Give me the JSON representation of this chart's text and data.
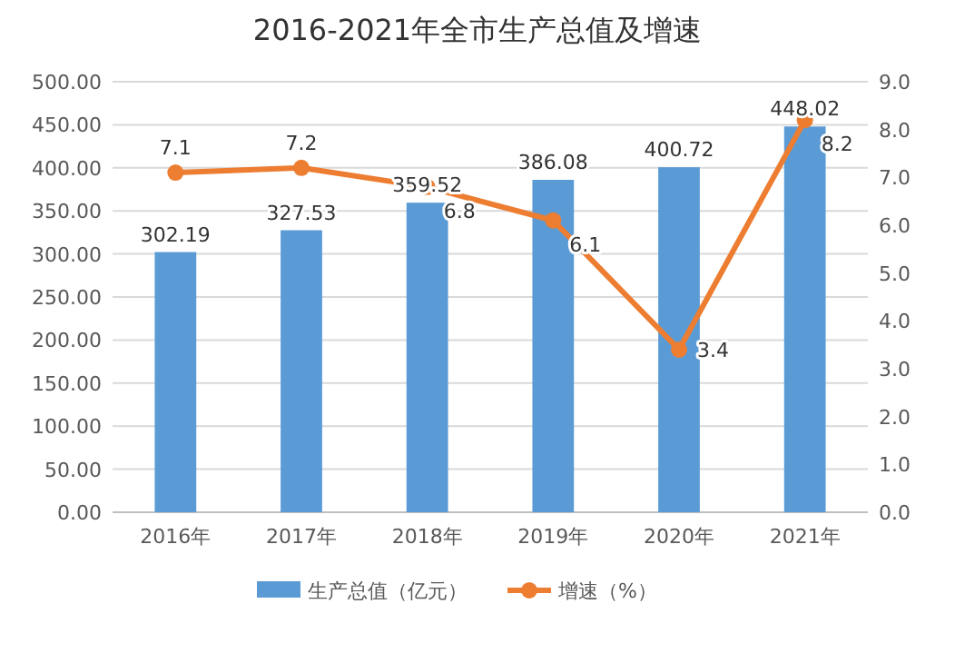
{
  "chart_data": {
    "type": "bar",
    "title": "2016-2021年全市生产总值及增速",
    "categories": [
      "2016年",
      "2017年",
      "2018年",
      "2019年",
      "2020年",
      "2021年"
    ],
    "series": [
      {
        "name": "生产总值（亿元）",
        "color": "#5b9bd5",
        "values": [
          302.19,
          327.53,
          359.52,
          386.08,
          400.72,
          448.02
        ]
      },
      {
        "name": "增速（%）",
        "type": "line",
        "axis": "y2",
        "color": "#ed7d31",
        "marker": "circle",
        "values": [
          7.1,
          7.2,
          6.8,
          6.1,
          3.4,
          8.2
        ]
      }
    ],
    "ylim": [
      0,
      500
    ],
    "yticks": [
      {
        "value": 0,
        "label": "0.00"
      },
      {
        "value": 50,
        "label": "50.00"
      },
      {
        "value": 100,
        "label": "100.00"
      },
      {
        "value": 150,
        "label": "150.00"
      },
      {
        "value": 200,
        "label": "200.00"
      },
      {
        "value": 250,
        "label": "250.00"
      },
      {
        "value": 300,
        "label": "300.00"
      },
      {
        "value": 350,
        "label": "350.00"
      },
      {
        "value": 400,
        "label": "400.00"
      },
      {
        "value": 450,
        "label": "450.00"
      },
      {
        "value": 500,
        "label": "500.00"
      }
    ],
    "y2lim": [
      0,
      9
    ],
    "y2ticks": [
      {
        "value": 0,
        "label": "0.0"
      },
      {
        "value": 1,
        "label": "1.0"
      },
      {
        "value": 2,
        "label": "2.0"
      },
      {
        "value": 3,
        "label": "3.0"
      },
      {
        "value": 4,
        "label": "4.0"
      },
      {
        "value": 5,
        "label": "5.0"
      },
      {
        "value": 6,
        "label": "6.0"
      },
      {
        "value": 7,
        "label": "7.0"
      },
      {
        "value": 8,
        "label": "8.0"
      },
      {
        "value": 9,
        "label": "9.0"
      }
    ],
    "grid": "y",
    "legend": "bottom",
    "data_labels": true
  }
}
